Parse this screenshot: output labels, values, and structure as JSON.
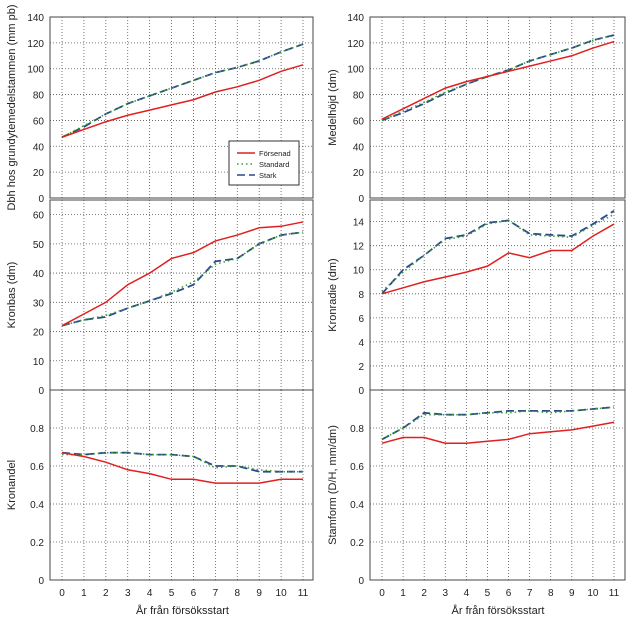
{
  "legend": [
    "Försenad",
    "Standard",
    "Stark"
  ],
  "colors": {
    "Försenad": "#e02020",
    "Standard": "#3a9a3a",
    "Stark": "#2a4a8a"
  },
  "chart_data": [
    {
      "type": "line",
      "ylabel": "Dbh hos grundytemedelstammen (mm pb)",
      "xlabel": "",
      "ylim": [
        0,
        140
      ],
      "yticks": [
        0,
        20,
        40,
        60,
        80,
        100,
        120,
        140
      ],
      "x": [
        0,
        1,
        2,
        3,
        4,
        5,
        6,
        7,
        8,
        9,
        10,
        11
      ],
      "series": [
        {
          "name": "Försenad",
          "values": [
            47,
            53,
            59,
            64,
            68,
            72,
            76,
            82,
            86,
            91,
            98,
            103
          ]
        },
        {
          "name": "Standard",
          "values": [
            47,
            56,
            65,
            73,
            79,
            85,
            91,
            97,
            101,
            106,
            113,
            119
          ]
        },
        {
          "name": "Stark",
          "values": [
            47,
            55,
            65,
            73,
            79,
            85,
            91,
            97,
            101,
            106,
            113,
            119
          ]
        }
      ]
    },
    {
      "type": "line",
      "ylabel": "Medelhöjd (dm)",
      "xlabel": "",
      "ylim": [
        0,
        140
      ],
      "yticks": [
        0,
        20,
        40,
        60,
        80,
        100,
        120,
        140
      ],
      "x": [
        0,
        1,
        2,
        3,
        4,
        5,
        6,
        7,
        8,
        9,
        10,
        11
      ],
      "series": [
        {
          "name": "Försenad",
          "values": [
            61,
            69,
            77,
            85,
            90,
            94,
            98,
            102,
            106,
            110,
            116,
            121
          ]
        },
        {
          "name": "Standard",
          "values": [
            60,
            67,
            74,
            82,
            88,
            94,
            99,
            106,
            111,
            116,
            122,
            126
          ]
        },
        {
          "name": "Stark",
          "values": [
            60,
            66,
            73,
            81,
            88,
            94,
            99,
            106,
            111,
            116,
            122,
            126
          ]
        }
      ]
    },
    {
      "type": "line",
      "ylabel": "Kronbas (dm)",
      "xlabel": "",
      "ylim": [
        0,
        65
      ],
      "yticks": [
        0,
        10,
        20,
        30,
        40,
        50,
        60
      ],
      "x": [
        0,
        1,
        2,
        3,
        4,
        5,
        6,
        7,
        8,
        9,
        10,
        11
      ],
      "series": [
        {
          "name": "Försenad",
          "values": [
            22,
            26,
            30,
            36,
            40,
            45,
            47,
            51,
            53,
            55.5,
            56,
            57.5
          ]
        },
        {
          "name": "Standard",
          "values": [
            22,
            24,
            25.5,
            28,
            30.5,
            33.5,
            37,
            43,
            45,
            50,
            53,
            54
          ]
        },
        {
          "name": "Stark",
          "values": [
            22,
            24,
            25,
            28,
            30.5,
            33,
            36,
            44,
            45,
            50,
            53,
            54
          ]
        }
      ]
    },
    {
      "type": "line",
      "ylabel": "Kronradie (dm)",
      "xlabel": "",
      "ylim": [
        0,
        15.8
      ],
      "yticks": [
        0,
        2,
        4,
        6,
        8,
        10,
        12,
        14
      ],
      "x": [
        0,
        1,
        2,
        3,
        4,
        5,
        6,
        7,
        8,
        9,
        10,
        11
      ],
      "series": [
        {
          "name": "Försenad",
          "values": [
            8,
            8.5,
            9,
            9.4,
            9.8,
            10.3,
            11.4,
            11,
            11.6,
            11.6,
            12.8,
            13.8
          ]
        },
        {
          "name": "Standard",
          "values": [
            8.2,
            9.8,
            11.2,
            12.5,
            12.8,
            13.8,
            14.1,
            12.9,
            12.8,
            12.7,
            13.7,
            14.6
          ]
        },
        {
          "name": "Stark",
          "values": [
            8,
            10,
            11.2,
            12.6,
            12.9,
            13.9,
            14.1,
            13,
            12.9,
            12.8,
            13.8,
            14.9
          ]
        }
      ]
    },
    {
      "type": "line",
      "ylabel": "Kronandel",
      "xlabel": "År från försöksstart",
      "ylim": [
        0,
        1
      ],
      "yticks": [
        0,
        0.2,
        0.4,
        0.6,
        0.8
      ],
      "x": [
        0,
        1,
        2,
        3,
        4,
        5,
        6,
        7,
        8,
        9,
        10,
        11
      ],
      "series": [
        {
          "name": "Försenad",
          "values": [
            0.67,
            0.65,
            0.62,
            0.58,
            0.56,
            0.53,
            0.53,
            0.51,
            0.51,
            0.51,
            0.53,
            0.53
          ]
        },
        {
          "name": "Standard",
          "values": [
            0.66,
            0.66,
            0.67,
            0.67,
            0.66,
            0.66,
            0.65,
            0.59,
            0.6,
            0.58,
            0.57,
            0.57
          ]
        },
        {
          "name": "Stark",
          "values": [
            0.67,
            0.66,
            0.67,
            0.67,
            0.66,
            0.66,
            0.65,
            0.6,
            0.6,
            0.57,
            0.57,
            0.57
          ]
        }
      ]
    },
    {
      "type": "line",
      "ylabel": "Stamform (D/H, mm/dm)",
      "xlabel": "År från försöksstart",
      "ylim": [
        0,
        1
      ],
      "yticks": [
        0,
        0.2,
        0.4,
        0.6,
        0.8
      ],
      "x": [
        0,
        1,
        2,
        3,
        4,
        5,
        6,
        7,
        8,
        9,
        10,
        11
      ],
      "series": [
        {
          "name": "Försenad",
          "values": [
            0.72,
            0.75,
            0.75,
            0.72,
            0.72,
            0.73,
            0.74,
            0.77,
            0.78,
            0.79,
            0.81,
            0.83
          ]
        },
        {
          "name": "Standard",
          "values": [
            0.74,
            0.8,
            0.87,
            0.87,
            0.87,
            0.88,
            0.88,
            0.89,
            0.88,
            0.89,
            0.9,
            0.91
          ]
        },
        {
          "name": "Stark",
          "values": [
            0.74,
            0.8,
            0.88,
            0.87,
            0.87,
            0.88,
            0.89,
            0.89,
            0.89,
            0.89,
            0.9,
            0.91
          ]
        }
      ]
    }
  ]
}
